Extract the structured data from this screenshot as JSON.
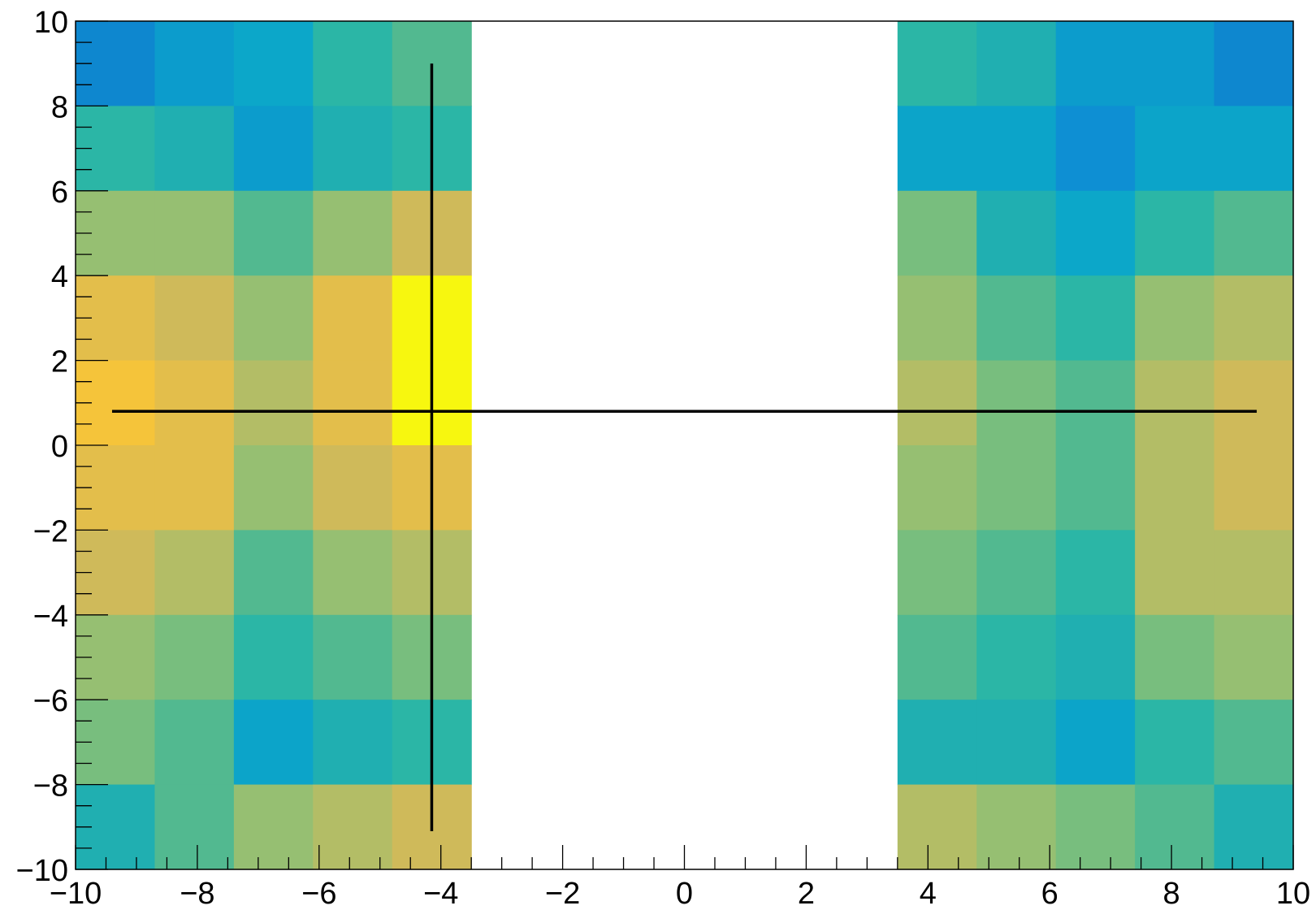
{
  "chart_data": {
    "type": "heatmap",
    "title": "",
    "xlabel": "",
    "ylabel": "",
    "xlim": [
      -10,
      10
    ],
    "ylim": [
      -10,
      10
    ],
    "grid": false,
    "x_ticks": [
      "−10",
      "−8",
      "−6",
      "−4",
      "−2",
      "0",
      "2",
      "4",
      "6",
      "8",
      "10"
    ],
    "y_ticks": [
      "−10",
      "−8",
      "−6",
      "−4",
      "−2",
      "0",
      "2",
      "4",
      "6",
      "8",
      "10"
    ],
    "x_bins": [
      -10,
      -8.7,
      -7.4,
      -6.1,
      -4.8,
      -3.5,
      3.5,
      4.8,
      6.1,
      7.4,
      8.7,
      10
    ],
    "y_bins": [
      -10,
      -8,
      -6,
      -4,
      -2,
      0,
      2,
      4,
      6,
      8,
      10
    ],
    "empty_x_ranges": [
      [
        -3.5,
        3.5
      ]
    ],
    "cell_colors_by_row_top_to_bottom": [
      [
        "#0e87cf",
        "#0c9ccc",
        "#0ca7c9",
        "#2bb6a6",
        "#52b990",
        null,
        "#2bb6a6",
        "#20afb1",
        "#0c9ccc",
        "#0c9ccc",
        "#0e87cf"
      ],
      [
        "#2bb6a6",
        "#20afb1",
        "#0c9ccc",
        "#20afb1",
        "#2bb6a6",
        null,
        "#0ca4c9",
        "#0ca4c9",
        "#0e8fd3",
        "#0ca4c9",
        "#0ca4c9"
      ],
      [
        "#96bf72",
        "#96bf72",
        "#52b990",
        "#96bf72",
        "#cfba5a",
        null,
        "#78be7e",
        "#20afb1",
        "#0ca7c9",
        "#2bb6a6",
        "#52b990"
      ],
      [
        "#e3be4b",
        "#cfba5a",
        "#96bf72",
        "#e3be4b",
        "#f7f70f",
        null,
        "#96bf72",
        "#52b990",
        "#2bb6a6",
        "#96bf72",
        "#b3bd66"
      ],
      [
        "#f5c43a",
        "#e3be4b",
        "#b3bd66",
        "#e3be4b",
        "#f7f70f",
        null,
        "#b3bd66",
        "#78be7e",
        "#52b990",
        "#b3bd66",
        "#cfba5a"
      ],
      [
        "#e3be4b",
        "#e3be4b",
        "#96bf72",
        "#cfba5a",
        "#e3be4b",
        null,
        "#96bf72",
        "#78be7e",
        "#52b990",
        "#b3bd66",
        "#cfba5a"
      ],
      [
        "#cfba5a",
        "#b3bd66",
        "#52b990",
        "#96bf72",
        "#b3bd66",
        null,
        "#78be7e",
        "#52b990",
        "#2bb6a6",
        "#b3bd66",
        "#b3bd66"
      ],
      [
        "#96bf72",
        "#78be7e",
        "#2bb6a6",
        "#52b990",
        "#78be7e",
        null,
        "#52b990",
        "#2bb6a6",
        "#20afb1",
        "#78be7e",
        "#96bf72"
      ],
      [
        "#78be7e",
        "#52b990",
        "#0ca4c9",
        "#20afb1",
        "#2bb6a6",
        null,
        "#20afb1",
        "#20afb1",
        "#0ca4c9",
        "#2bb6a6",
        "#52b990"
      ],
      [
        "#20afb1",
        "#52b990",
        "#96bf72",
        "#b3bd66",
        "#cfba5a",
        null,
        "#b3bd66",
        "#96bf72",
        "#78be7e",
        "#52b990",
        "#20afb1"
      ]
    ],
    "crosshair": {
      "x": -4.15,
      "y": 0.8,
      "x_range": [
        -9.4,
        9.4
      ],
      "y_range": [
        -9.1,
        9.0
      ],
      "color": "#000000"
    }
  }
}
